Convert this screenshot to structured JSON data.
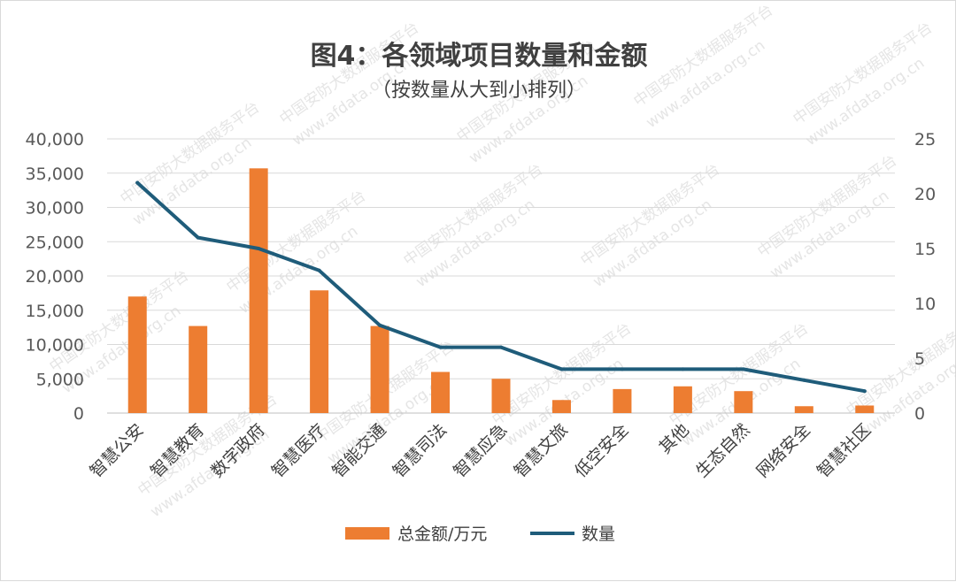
{
  "watermark": {
    "text1": "中国安防大数据服务平台",
    "text2": "www.afdata.org.cn"
  },
  "chart_data": {
    "type": "bar",
    "title": "图4：各领域项目数量和金额",
    "subtitle": "（按数量从大到小排列）",
    "categories": [
      "智慧公安",
      "智慧教育",
      "数字政府",
      "智慧医疗",
      "智能交通",
      "智慧司法",
      "智慧应急",
      "智慧文旅",
      "低空安全",
      "其他",
      "生态自然",
      "网络安全",
      "智慧社区"
    ],
    "series": [
      {
        "name": "总金额/万元",
        "type": "bar",
        "axis": "left",
        "color": "#ED7D31",
        "values": [
          17000,
          12700,
          35700,
          17900,
          12700,
          6000,
          5000,
          1900,
          3500,
          3900,
          3200,
          1000,
          1100
        ]
      },
      {
        "name": "数量",
        "type": "line",
        "axis": "right",
        "color": "#1F5C7A",
        "values": [
          21,
          16,
          15,
          13,
          8,
          6,
          6,
          4,
          4,
          4,
          4,
          3,
          2
        ]
      }
    ],
    "y_left": {
      "min": 0,
      "max": 40000,
      "step": 5000,
      "tick_labels": [
        "0",
        "5,000",
        "10,000",
        "15,000",
        "20,000",
        "25,000",
        "30,000",
        "35,000",
        "40,000"
      ]
    },
    "y_right": {
      "min": 0,
      "max": 25,
      "step": 5,
      "tick_labels": [
        "0",
        "5",
        "10",
        "15",
        "20",
        "25"
      ]
    },
    "grid": true,
    "legend_position": "bottom"
  }
}
